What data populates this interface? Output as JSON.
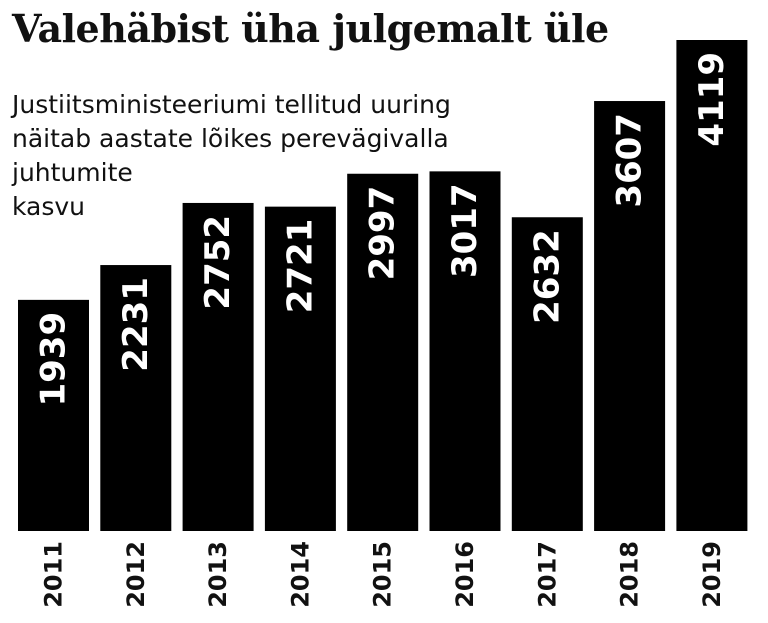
{
  "chart_data": {
    "type": "bar",
    "title": "Valehäbist üha julgemalt üle",
    "subtitle_lines": [
      "Justiitsministeeriumi tellitud uuring",
      "näitab aastate lõikes perevägivalla",
      "juhtumite",
      "kasvu"
    ],
    "categories": [
      "2011",
      "2012",
      "2013",
      "2014",
      "2015",
      "2016",
      "2017",
      "2018",
      "2019"
    ],
    "values": [
      1939,
      2231,
      2752,
      2721,
      2997,
      3017,
      2632,
      3607,
      4119
    ],
    "ylim": [
      0,
      4119
    ],
    "bar_color": "#000000",
    "label_color": "#ffffff",
    "grid": false,
    "legend": "none"
  }
}
